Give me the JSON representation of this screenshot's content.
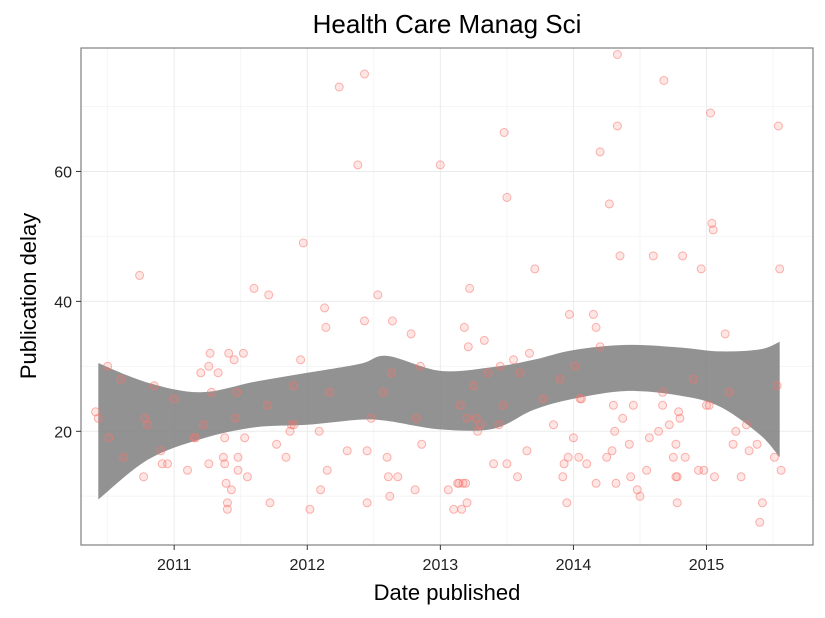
{
  "chart_data": {
    "type": "scatter",
    "title": "Health Care Manag Sci",
    "xlabel": "Date published",
    "ylabel": "Publication delay",
    "xlim": [
      2010.3,
      2015.8
    ],
    "ylim": [
      2.5,
      79
    ],
    "x_ticks": [
      2011,
      2012,
      2013,
      2014,
      2015
    ],
    "x_tick_labels": [
      "2011",
      "2012",
      "2013",
      "2014",
      "2015"
    ],
    "y_ticks": [
      20,
      40,
      60
    ],
    "y_tick_labels": [
      "20",
      "40",
      "60"
    ],
    "grid": true,
    "point_color": "#f8766d",
    "band_color": "#7f7f7f",
    "points": [
      [
        2010.41,
        23
      ],
      [
        2010.43,
        22
      ],
      [
        2010.5,
        30
      ],
      [
        2010.51,
        19
      ],
      [
        2010.62,
        16
      ],
      [
        2010.6,
        28
      ],
      [
        2010.74,
        44
      ],
      [
        2010.77,
        13
      ],
      [
        2010.78,
        22
      ],
      [
        2010.8,
        21
      ],
      [
        2010.85,
        27
      ],
      [
        2010.9,
        17
      ],
      [
        2010.91,
        15
      ],
      [
        2010.95,
        15
      ],
      [
        2011.0,
        25
      ],
      [
        2011.1,
        14
      ],
      [
        2011.15,
        19
      ],
      [
        2011.16,
        19
      ],
      [
        2011.2,
        29
      ],
      [
        2011.22,
        21
      ],
      [
        2011.26,
        30
      ],
      [
        2011.26,
        15
      ],
      [
        2011.27,
        32
      ],
      [
        2011.28,
        26
      ],
      [
        2011.33,
        29
      ],
      [
        2011.37,
        16
      ],
      [
        2011.38,
        15
      ],
      [
        2011.38,
        19
      ],
      [
        2011.39,
        12
      ],
      [
        2011.4,
        9
      ],
      [
        2011.4,
        8
      ],
      [
        2011.41,
        32
      ],
      [
        2011.43,
        11
      ],
      [
        2011.45,
        31
      ],
      [
        2011.46,
        22
      ],
      [
        2011.47,
        26
      ],
      [
        2011.48,
        14
      ],
      [
        2011.48,
        16
      ],
      [
        2011.52,
        32
      ],
      [
        2011.53,
        19
      ],
      [
        2011.55,
        13
      ],
      [
        2011.6,
        42
      ],
      [
        2011.7,
        24
      ],
      [
        2011.71,
        41
      ],
      [
        2011.72,
        9
      ],
      [
        2011.77,
        18
      ],
      [
        2011.84,
        16
      ],
      [
        2011.87,
        20
      ],
      [
        2011.88,
        21
      ],
      [
        2011.9,
        21
      ],
      [
        2011.9,
        27
      ],
      [
        2011.95,
        31
      ],
      [
        2011.97,
        49
      ],
      [
        2012.02,
        8
      ],
      [
        2012.09,
        20
      ],
      [
        2012.1,
        11
      ],
      [
        2012.13,
        39
      ],
      [
        2012.14,
        36
      ],
      [
        2012.15,
        14
      ],
      [
        2012.17,
        26
      ],
      [
        2012.24,
        73
      ],
      [
        2012.3,
        17
      ],
      [
        2012.38,
        61
      ],
      [
        2012.43,
        75
      ],
      [
        2012.43,
        37
      ],
      [
        2012.45,
        17
      ],
      [
        2012.45,
        9
      ],
      [
        2012.48,
        22
      ],
      [
        2012.53,
        41
      ],
      [
        2012.57,
        26
      ],
      [
        2012.6,
        16
      ],
      [
        2012.61,
        13
      ],
      [
        2012.62,
        10
      ],
      [
        2012.63,
        29
      ],
      [
        2012.64,
        37
      ],
      [
        2012.68,
        13
      ],
      [
        2012.78,
        35
      ],
      [
        2012.81,
        11
      ],
      [
        2012.82,
        22
      ],
      [
        2012.85,
        30
      ],
      [
        2012.86,
        18
      ],
      [
        2013.0,
        61
      ],
      [
        2013.06,
        11
      ],
      [
        2013.1,
        8
      ],
      [
        2013.13,
        12
      ],
      [
        2013.14,
        12
      ],
      [
        2013.15,
        24
      ],
      [
        2013.16,
        8
      ],
      [
        2013.17,
        12
      ],
      [
        2013.18,
        36
      ],
      [
        2013.19,
        12
      ],
      [
        2013.2,
        22
      ],
      [
        2013.2,
        9
      ],
      [
        2013.21,
        33
      ],
      [
        2013.22,
        42
      ],
      [
        2013.25,
        27
      ],
      [
        2013.27,
        22
      ],
      [
        2013.28,
        20
      ],
      [
        2013.3,
        21
      ],
      [
        2013.33,
        34
      ],
      [
        2013.36,
        29
      ],
      [
        2013.4,
        15
      ],
      [
        2013.44,
        21
      ],
      [
        2013.45,
        30
      ],
      [
        2013.47,
        24
      ],
      [
        2013.48,
        66
      ],
      [
        2013.5,
        56
      ],
      [
        2013.5,
        15
      ],
      [
        2013.55,
        31
      ],
      [
        2013.58,
        13
      ],
      [
        2013.6,
        29
      ],
      [
        2013.65,
        17
      ],
      [
        2013.67,
        32
      ],
      [
        2013.71,
        45
      ],
      [
        2013.77,
        25
      ],
      [
        2013.85,
        21
      ],
      [
        2013.9,
        28
      ],
      [
        2013.92,
        13
      ],
      [
        2013.93,
        15
      ],
      [
        2013.95,
        9
      ],
      [
        2013.96,
        16
      ],
      [
        2013.97,
        38
      ],
      [
        2014.0,
        19
      ],
      [
        2014.01,
        30
      ],
      [
        2014.04,
        16
      ],
      [
        2014.05,
        25
      ],
      [
        2014.06,
        25
      ],
      [
        2014.1,
        15
      ],
      [
        2014.15,
        38
      ],
      [
        2014.17,
        36
      ],
      [
        2014.17,
        12
      ],
      [
        2014.2,
        33
      ],
      [
        2014.2,
        63
      ],
      [
        2014.25,
        16
      ],
      [
        2014.27,
        55
      ],
      [
        2014.29,
        17
      ],
      [
        2014.3,
        24
      ],
      [
        2014.31,
        20
      ],
      [
        2014.32,
        12
      ],
      [
        2014.33,
        67
      ],
      [
        2014.33,
        78
      ],
      [
        2014.35,
        47
      ],
      [
        2014.37,
        22
      ],
      [
        2014.42,
        18
      ],
      [
        2014.43,
        13
      ],
      [
        2014.45,
        24
      ],
      [
        2014.48,
        11
      ],
      [
        2014.5,
        10
      ],
      [
        2014.55,
        14
      ],
      [
        2014.57,
        19
      ],
      [
        2014.6,
        47
      ],
      [
        2014.64,
        20
      ],
      [
        2014.67,
        26
      ],
      [
        2014.67,
        24
      ],
      [
        2014.68,
        74
      ],
      [
        2014.72,
        21
      ],
      [
        2014.75,
        16
      ],
      [
        2014.77,
        18
      ],
      [
        2014.77,
        13
      ],
      [
        2014.78,
        13
      ],
      [
        2014.78,
        9
      ],
      [
        2014.79,
        23
      ],
      [
        2014.8,
        22
      ],
      [
        2014.82,
        47
      ],
      [
        2014.84,
        16
      ],
      [
        2014.9,
        28
      ],
      [
        2014.94,
        14
      ],
      [
        2014.96,
        45
      ],
      [
        2014.98,
        14
      ],
      [
        2015.0,
        24
      ],
      [
        2015.02,
        24
      ],
      [
        2015.03,
        69
      ],
      [
        2015.04,
        52
      ],
      [
        2015.05,
        51
      ],
      [
        2015.06,
        13
      ],
      [
        2015.14,
        35
      ],
      [
        2015.17,
        26
      ],
      [
        2015.2,
        18
      ],
      [
        2015.22,
        20
      ],
      [
        2015.26,
        13
      ],
      [
        2015.3,
        21
      ],
      [
        2015.32,
        17
      ],
      [
        2015.38,
        18
      ],
      [
        2015.4,
        6
      ],
      [
        2015.42,
        9
      ],
      [
        2015.51,
        16
      ],
      [
        2015.53,
        27
      ],
      [
        2015.54,
        67
      ],
      [
        2015.55,
        45
      ],
      [
        2015.56,
        14
      ]
    ],
    "smooth_band": {
      "x": [
        2010.43,
        2010.8,
        2011.2,
        2011.6,
        2012.0,
        2012.4,
        2012.6,
        2013.0,
        2013.4,
        2013.7,
        2014.0,
        2014.4,
        2014.8,
        2015.1,
        2015.4,
        2015.55
      ],
      "upper": [
        30.5,
        27.5,
        26.0,
        27.6,
        29.0,
        30.4,
        31.6,
        29.3,
        29.9,
        31.0,
        32.5,
        33.3,
        32.9,
        32.3,
        32.6,
        33.8
      ],
      "lower": [
        9.5,
        15.6,
        18.8,
        20.6,
        21.0,
        21.8,
        21.6,
        20.3,
        20.4,
        23.3,
        25.0,
        26.2,
        25.5,
        23.8,
        19.5,
        16.0
      ]
    }
  }
}
